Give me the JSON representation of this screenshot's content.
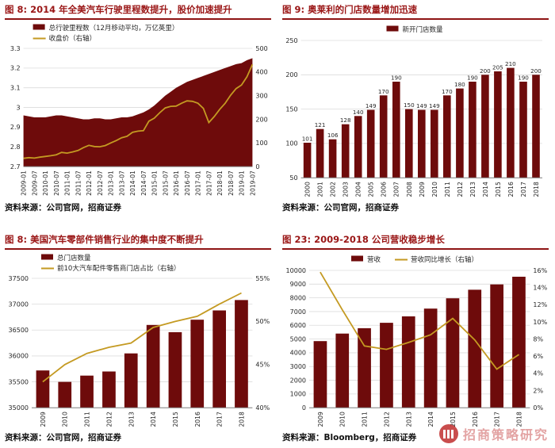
{
  "watermark": {
    "text": "招商策略研究"
  },
  "colors": {
    "title_red": "#9a1616",
    "bar": "#6e0b0b",
    "line": "#c49a22",
    "grid": "#dcdcdc",
    "axis_text": "#262626"
  },
  "figures": [
    {
      "title": "图 8: 2014 年全美汽车行驶里程数提升，股价加速提升",
      "source": "资料来源：公司官网，招商证券"
    },
    {
      "title": "图 9: 奥莱利的门店数量增加迅速",
      "source": "资料来源：公司官网，招商证券"
    },
    {
      "title": "图 8: 美国汽车零部件销售行业的集中度不断提升",
      "source": "资料来源：公司官网，招商证券"
    },
    {
      "title": "图 23: 2009-2018 公司营收稳步增长",
      "source": "资料来源：Bloomberg，招商证券"
    }
  ],
  "chart_data": [
    {
      "type": "area",
      "title": "2014 年全美汽车行驶里程数提升，股价加速提升",
      "x_mode": "spread",
      "legend_layout": "stack",
      "x_labels": [
        "2009-01",
        "2009-07",
        "2010-01",
        "2010-07",
        "2011-01",
        "2011-07",
        "2012-01",
        "2012-07",
        "2013-01",
        "2013-07",
        "2014-01",
        "2014-07",
        "2015-01",
        "2015-07",
        "2016-01",
        "2016-07",
        "2017-01",
        "2017-07",
        "2018-01",
        "2018-07",
        "2019-01",
        "2019-07"
      ],
      "left_axis": {
        "min": 2.7,
        "max": 3.3,
        "labels": [
          "2.7",
          "2.8",
          "2.9",
          "3",
          "3.1",
          "3.2",
          "3.3"
        ]
      },
      "right_axis": {
        "min": 0,
        "max": 500,
        "labels": [
          "0",
          "100",
          "200",
          "300",
          "400",
          "500"
        ]
      },
      "series": [
        {
          "name": "总行驶里程数（12月移动平均，万亿英里）",
          "kind": "area",
          "axis": "left",
          "values": [
            2.96,
            2.955,
            2.95,
            2.95,
            2.95,
            2.955,
            2.96,
            2.96,
            2.955,
            2.95,
            2.945,
            2.94,
            2.94,
            2.945,
            2.945,
            2.94,
            2.94,
            2.945,
            2.95,
            2.95,
            2.955,
            2.965,
            2.975,
            2.99,
            3.01,
            3.035,
            3.06,
            3.08,
            3.1,
            3.115,
            3.13,
            3.14,
            3.15,
            3.16,
            3.17,
            3.18,
            3.19,
            3.2,
            3.21,
            3.22,
            3.225,
            3.24,
            3.25
          ]
        },
        {
          "name": "收盘价（右轴）",
          "kind": "line",
          "axis": "right",
          "values": [
            35,
            38,
            36,
            40,
            43,
            46,
            50,
            60,
            57,
            62,
            68,
            80,
            90,
            85,
            84,
            89,
            100,
            110,
            122,
            128,
            145,
            150,
            152,
            192,
            205,
            228,
            248,
            255,
            256,
            268,
            278,
            276,
            268,
            246,
            186,
            212,
            242,
            268,
            302,
            330,
            345,
            380,
            432
          ]
        }
      ]
    },
    {
      "type": "bar",
      "title": "奥莱利的门店数量增加迅速",
      "x_mode": "band",
      "legend_layout": "row",
      "x_labels": [
        "2000",
        "2001",
        "2002",
        "2003",
        "2004",
        "2005",
        "2006",
        "2007",
        "2008",
        "2009",
        "2010",
        "2011",
        "2012",
        "2013",
        "2014",
        "2015",
        "2016",
        "2017",
        "2018"
      ],
      "left_axis": {
        "min": 50,
        "max": 250,
        "labels": [
          "50",
          "100",
          "150",
          "200",
          "250"
        ]
      },
      "right_axis": null,
      "series": [
        {
          "name": "新开门店数量",
          "kind": "bar",
          "axis": "left",
          "value_labels": true,
          "values": [
            101,
            121,
            106,
            128,
            140,
            149,
            170,
            190,
            150,
            149,
            149,
            170,
            180,
            190,
            200,
            205,
            210,
            190,
            200
          ]
        }
      ]
    },
    {
      "type": "bar",
      "title": "美国汽车零部件销售行业的集中度不断提升",
      "x_mode": "band",
      "legend_layout": "stack",
      "x_labels": [
        "2009",
        "2010",
        "2011",
        "2012",
        "2013",
        "2014",
        "2015",
        "2016",
        "2017",
        "2018"
      ],
      "left_axis": {
        "min": 35000,
        "max": 37500,
        "labels": [
          "35000",
          "35500",
          "36000",
          "36500",
          "37000",
          "37500"
        ]
      },
      "right_axis": {
        "min": 0.4,
        "max": 0.55,
        "labels": [
          "40%",
          "45%",
          "50%",
          "55%"
        ]
      },
      "series": [
        {
          "name": "总门店数量",
          "kind": "bar",
          "axis": "left",
          "values": [
            35720,
            35500,
            35620,
            35700,
            36050,
            36600,
            36460,
            36700,
            36880,
            37080
          ]
        },
        {
          "name": "前10大汽车配件零售商门店占比（右轴）",
          "kind": "line",
          "axis": "right",
          "values": [
            0.43,
            0.45,
            0.463,
            0.47,
            0.475,
            0.493,
            0.5,
            0.506,
            0.52,
            0.533
          ]
        }
      ]
    },
    {
      "type": "bar",
      "title": "2009-2018 公司营收稳步增长",
      "x_mode": "band",
      "legend_layout": "row",
      "x_labels": [
        "2009",
        "2010",
        "2011",
        "2012",
        "2013",
        "2014",
        "2015",
        "2016",
        "2017",
        "2018"
      ],
      "left_axis": {
        "min": 0,
        "max": 10000,
        "labels": [
          "0",
          "1000",
          "2000",
          "3000",
          "4000",
          "5000",
          "6000",
          "7000",
          "8000",
          "9000",
          "10000"
        ]
      },
      "right_axis": {
        "min": 0,
        "max": 0.16,
        "labels": [
          "0%",
          "2%",
          "4%",
          "6%",
          "8%",
          "10%",
          "12%",
          "14%",
          "16%"
        ]
      },
      "series": [
        {
          "name": "营收",
          "kind": "bar",
          "axis": "left",
          "values": [
            4847,
            5398,
            5789,
            6182,
            6649,
            7216,
            7967,
            8593,
            8978,
            9536
          ]
        },
        {
          "name": "营收同比增长（右轴）",
          "kind": "line",
          "axis": "right",
          "values": [
            0.158,
            0.114,
            0.072,
            0.068,
            0.076,
            0.085,
            0.104,
            0.079,
            0.045,
            0.062
          ]
        }
      ]
    }
  ]
}
